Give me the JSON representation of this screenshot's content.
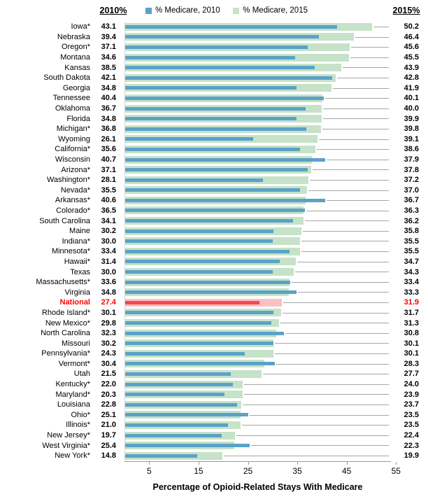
{
  "header": {
    "left_label": "2010%",
    "right_label": "2015%"
  },
  "legend": {
    "items": [
      {
        "name": "% Medicare, 2010",
        "color": "#5AA2C7"
      },
      {
        "name": "% Medicare, 2015",
        "color": "#C6E2C8"
      }
    ]
  },
  "colors": {
    "bar_2010": "#5AA2C7",
    "bar_2015": "#C6E2C8",
    "bar_2010_highlight": "#F4484E",
    "bar_2015_highlight": "#FAC0C4",
    "highlight_text": "#FF0000",
    "leader_line": "#A6A6A6",
    "axis_line": "#9B9B9B"
  },
  "chart_data": {
    "type": "bar",
    "orientation": "horizontal",
    "title": "",
    "xlabel": "Percentage of Opioid-Related Stays With Medicare",
    "ylabel": "",
    "xlim": [
      0,
      55
    ],
    "x_ticks": [
      5,
      15,
      25,
      35,
      45,
      55
    ],
    "grid": false,
    "legend_position": "top",
    "series": [
      {
        "name": "% Medicare, 2010",
        "color": "#5AA2C7"
      },
      {
        "name": "% Medicare, 2015",
        "color": "#C6E2C8"
      }
    ],
    "rows": [
      {
        "label": "Iowa*",
        "v2010": 43.1,
        "v2015": 50.2
      },
      {
        "label": "Nebraska",
        "v2010": 39.4,
        "v2015": 46.4
      },
      {
        "label": "Oregon*",
        "v2010": 37.1,
        "v2015": 45.6
      },
      {
        "label": "Montana",
        "v2010": 34.6,
        "v2015": 45.5
      },
      {
        "label": "Kansas",
        "v2010": 38.5,
        "v2015": 43.9
      },
      {
        "label": "South Dakota",
        "v2010": 42.1,
        "v2015": 42.8
      },
      {
        "label": "Georgia",
        "v2010": 34.8,
        "v2015": 41.9
      },
      {
        "label": "Tennessee",
        "v2010": 40.4,
        "v2015": 40.1
      },
      {
        "label": "Oklahoma",
        "v2010": 36.7,
        "v2015": 40.0
      },
      {
        "label": "Florida",
        "v2010": 34.8,
        "v2015": 39.9
      },
      {
        "label": "Michigan*",
        "v2010": 36.8,
        "v2015": 39.8
      },
      {
        "label": "Wyoming",
        "v2010": 26.1,
        "v2015": 39.1
      },
      {
        "label": "California*",
        "v2010": 35.6,
        "v2015": 38.6
      },
      {
        "label": "Wisconsin",
        "v2010": 40.7,
        "v2015": 37.9
      },
      {
        "label": "Arizona*",
        "v2010": 37.1,
        "v2015": 37.8
      },
      {
        "label": "Washington*",
        "v2010": 28.1,
        "v2015": 37.2
      },
      {
        "label": "Nevada*",
        "v2010": 35.5,
        "v2015": 37.0
      },
      {
        "label": "Arkansas*",
        "v2010": 40.6,
        "v2015": 36.7
      },
      {
        "label": "Colorado*",
        "v2010": 36.5,
        "v2015": 36.3
      },
      {
        "label": "South Carolina",
        "v2010": 34.1,
        "v2015": 36.2
      },
      {
        "label": "Maine",
        "v2010": 30.2,
        "v2015": 35.8
      },
      {
        "label": "Indiana*",
        "v2010": 30.0,
        "v2015": 35.5
      },
      {
        "label": "Minnesota*",
        "v2010": 33.4,
        "v2015": 35.5
      },
      {
        "label": "Hawaii*",
        "v2010": 31.4,
        "v2015": 34.7
      },
      {
        "label": "Texas",
        "v2010": 30.0,
        "v2015": 34.3
      },
      {
        "label": "Massachusetts*",
        "v2010": 33.6,
        "v2015": 33.4
      },
      {
        "label": "Virginia",
        "v2010": 34.8,
        "v2015": 33.3
      },
      {
        "label": "National",
        "v2010": 27.4,
        "v2015": 31.9,
        "highlight": true
      },
      {
        "label": "Rhode Island*",
        "v2010": 30.1,
        "v2015": 31.7
      },
      {
        "label": "New Mexico*",
        "v2010": 29.8,
        "v2015": 31.3
      },
      {
        "label": "North Carolina",
        "v2010": 32.3,
        "v2015": 30.8
      },
      {
        "label": "Missouri",
        "v2010": 30.2,
        "v2015": 30.1
      },
      {
        "label": "Pennsylvania*",
        "v2010": 24.3,
        "v2015": 30.1
      },
      {
        "label": "Vermont*",
        "v2010": 30.4,
        "v2015": 28.3
      },
      {
        "label": "Utah",
        "v2010": 21.5,
        "v2015": 27.7
      },
      {
        "label": "Kentucky*",
        "v2010": 22.0,
        "v2015": 24.0
      },
      {
        "label": "Maryland*",
        "v2010": 20.3,
        "v2015": 23.9
      },
      {
        "label": "Louisiana",
        "v2010": 22.8,
        "v2015": 23.7
      },
      {
        "label": "Ohio*",
        "v2010": 25.1,
        "v2015": 23.5
      },
      {
        "label": "Illinois*",
        "v2010": 21.0,
        "v2015": 23.5
      },
      {
        "label": "New Jersey*",
        "v2010": 19.7,
        "v2015": 22.4
      },
      {
        "label": "West Virginia*",
        "v2010": 25.4,
        "v2015": 22.3
      },
      {
        "label": "New York*",
        "v2010": 14.8,
        "v2015": 19.9
      }
    ]
  }
}
